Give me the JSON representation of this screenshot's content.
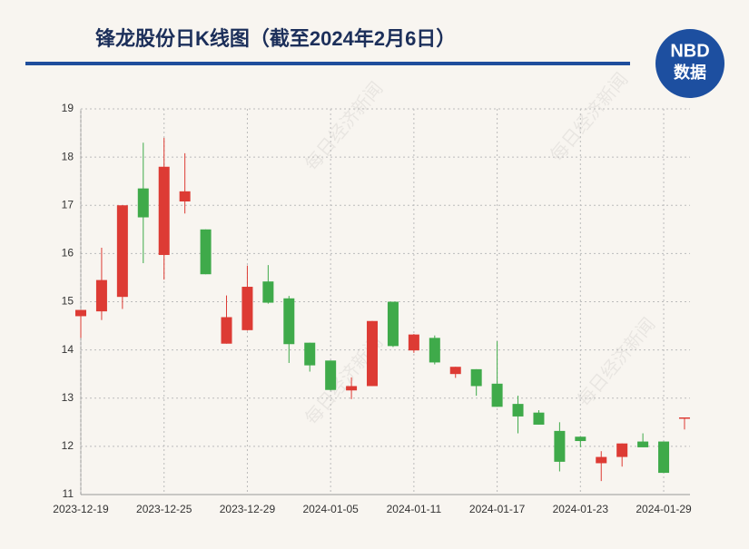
{
  "chart_data": {
    "type": "candlestick",
    "title": "锋龙股份日K线图（截至2024年2月6日）",
    "logo": {
      "top": "NBD",
      "bottom": "数据"
    },
    "watermark": "每日经济新闻",
    "categories": [
      "2023-12-19",
      null,
      null,
      null,
      "2023-12-25",
      null,
      null,
      null,
      "2023-12-29",
      null,
      null,
      null,
      "2024-01-05",
      null,
      null,
      null,
      "2024-01-11",
      null,
      null,
      null,
      "2024-01-17",
      null,
      null,
      null,
      "2024-01-23",
      null,
      null,
      null,
      "2024-01-29",
      null
    ],
    "open": [
      14.7,
      14.8,
      15.1,
      17.35,
      15.97,
      17.08,
      16.5,
      14.13,
      14.41,
      15.42,
      15.07,
      14.15,
      13.78,
      13.16,
      13.25,
      15.0,
      13.99,
      14.25,
      13.5,
      13.6,
      13.3,
      12.88,
      12.7,
      12.32,
      12.2,
      11.65,
      11.78,
      12.1,
      12.1,
      12.6
    ],
    "high": [
      14.83,
      16.12,
      17.0,
      18.3,
      18.4,
      18.08,
      16.5,
      15.13,
      15.75,
      15.76,
      15.12,
      14.15,
      13.78,
      13.43,
      14.6,
      15.0,
      14.33,
      14.3,
      13.65,
      13.6,
      14.18,
      13.05,
      12.75,
      12.5,
      12.2,
      11.9,
      12.06,
      12.27,
      12.1,
      12.6
    ],
    "low": [
      14.25,
      14.62,
      14.85,
      15.8,
      15.46,
      16.83,
      15.57,
      14.13,
      14.4,
      14.96,
      13.73,
      13.55,
      13.16,
      12.98,
      13.25,
      14.06,
      13.94,
      13.7,
      13.42,
      13.05,
      12.82,
      12.27,
      12.45,
      11.48,
      11.98,
      11.28,
      11.58,
      11.98,
      11.45,
      12.35
    ],
    "close": [
      14.83,
      15.45,
      17.0,
      16.75,
      17.8,
      17.29,
      15.57,
      14.68,
      15.31,
      14.98,
      14.12,
      13.68,
      13.17,
      13.25,
      14.6,
      14.08,
      14.32,
      13.74,
      13.65,
      13.25,
      12.82,
      12.62,
      12.45,
      11.68,
      12.11,
      11.78,
      12.06,
      11.98,
      11.45,
      12.6
    ],
    "up_color": "#dd3b34",
    "down_color": "#3faa4a",
    "ylim": [
      11,
      19
    ],
    "yticks": [
      11,
      12,
      13,
      14,
      15,
      16,
      17,
      18,
      19
    ],
    "grid": true
  }
}
